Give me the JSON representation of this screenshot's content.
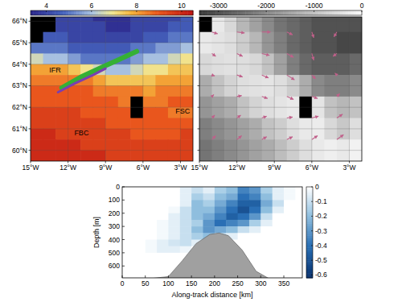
{
  "chart_data": [
    {
      "type": "map",
      "xlim": [
        -15,
        -2
      ],
      "ylim": [
        59.5,
        66.2
      ],
      "xticks": [
        {
          "value": -15,
          "label": "15°W"
        },
        {
          "value": -12,
          "label": "12°W"
        },
        {
          "value": -9,
          "label": "9°W"
        },
        {
          "value": -6,
          "label": "6°W"
        },
        {
          "value": -3,
          "label": "3°W"
        }
      ],
      "yticks": [
        {
          "value": 60,
          "label": "60°N"
        },
        {
          "value": 61,
          "label": "61°N"
        },
        {
          "value": 62,
          "label": "62°N"
        },
        {
          "value": 63,
          "label": "63°N"
        },
        {
          "value": 64,
          "label": "64°N"
        },
        {
          "value": 65,
          "label": "65°N"
        },
        {
          "value": 66,
          "label": "66°N"
        }
      ],
      "grid": true,
      "cells": {
        "x_edges": [
          -15,
          -14,
          -13,
          -12,
          -11,
          -10,
          -9,
          -8,
          -7,
          -6,
          -5,
          -4,
          -3,
          -2
        ],
        "y_edges": [
          66.5,
          66,
          65.5,
          65,
          64.5,
          64,
          63.5,
          63,
          62.5,
          62,
          61.5,
          61,
          60.5,
          60,
          59.5
        ],
        "values": [
          [
            null,
            null,
            4,
            4,
            4,
            3.5,
            3.5,
            3.5,
            4,
            4,
            4,
            4,
            4.5
          ],
          [
            null,
            null,
            4,
            4,
            4,
            4,
            3.5,
            3.5,
            4,
            4,
            4,
            4.5,
            4.5
          ],
          [
            null,
            4.5,
            4.5,
            4,
            4,
            4,
            4,
            4,
            4,
            4.5,
            4.5,
            5,
            5
          ],
          [
            5,
            5,
            5,
            4.5,
            4.5,
            4.5,
            4.5,
            4.5,
            5,
            5,
            5.5,
            5.5,
            6
          ],
          [
            6.5,
            6,
            6,
            5.5,
            5,
            5,
            5,
            5,
            5.5,
            6,
            6,
            6.5,
            7
          ],
          [
            8,
            8,
            8,
            7.5,
            7,
            6.5,
            6,
            6,
            6.5,
            7,
            7,
            7.5,
            7.5
          ],
          [
            8.5,
            8.5,
            8.5,
            8.5,
            8.5,
            8,
            7.5,
            7.5,
            7.5,
            7.5,
            8,
            8,
            8
          ],
          [
            9,
            9,
            9,
            9,
            9,
            8.5,
            8.5,
            8.5,
            8.5,
            8,
            8.5,
            8.5,
            8.5
          ],
          [
            9,
            9,
            9,
            9,
            9,
            9,
            9,
            8.5,
            null,
            8.5,
            8.5,
            9,
            9
          ],
          [
            9.5,
            9.5,
            9.5,
            9.5,
            9,
            9,
            9,
            9,
            null,
            9,
            9,
            8.5,
            8.5
          ],
          [
            9.5,
            9.5,
            9.5,
            9.5,
            9.5,
            9.5,
            9,
            9,
            9,
            9,
            9,
            9,
            9
          ],
          [
            10,
            10,
            9.5,
            9.5,
            9.5,
            9.5,
            9.5,
            9.5,
            9,
            9,
            9,
            9,
            9.5
          ],
          [
            10,
            10,
            10,
            10,
            9.5,
            9.5,
            9.5,
            9.5,
            9.5,
            9.5,
            9.5,
            9.5,
            9.5
          ],
          [
            10,
            10,
            10,
            10,
            10,
            10,
            9.5,
            9.5,
            9.5,
            9.5,
            9.5,
            9.5,
            9.5
          ]
        ]
      },
      "colorbar": {
        "range": [
          3.3,
          10.5
        ],
        "ticks": [
          4,
          6,
          8,
          10
        ]
      },
      "tracks": [
        {
          "color": "#35b035",
          "x": [
            -12.5,
            -11,
            -9.5,
            -8,
            -6.5
          ],
          "y": [
            62.9,
            63.4,
            63.8,
            64.2,
            64.6
          ]
        },
        {
          "color": "#7a3fb0",
          "x": [
            -12.8,
            -11.5,
            -10,
            -9
          ],
          "y": [
            62.7,
            63.1,
            63.5,
            63.8
          ]
        }
      ],
      "annotations": [
        {
          "text": "IFR",
          "x": -13.5,
          "y": 63.6
        },
        {
          "text": "FBC",
          "x": -11.5,
          "y": 60.7
        },
        {
          "text": "FSC",
          "x": -3.4,
          "y": 61.7
        }
      ]
    },
    {
      "type": "map",
      "xlim": [
        -15,
        -2
      ],
      "ylim": [
        59.5,
        66.2
      ],
      "xticks": [
        {
          "value": -15,
          "label": "15°W"
        },
        {
          "value": -12,
          "label": "12°W"
        },
        {
          "value": -9,
          "label": "9°W"
        },
        {
          "value": -6,
          "label": "6°W"
        },
        {
          "value": -3,
          "label": "3°W"
        }
      ],
      "yticks": [
        60,
        61,
        62,
        63,
        64,
        65,
        66
      ],
      "tick_labels": "x",
      "grid": true,
      "cells": {
        "x_edges": [
          -15,
          -14,
          -13,
          -12,
          -11,
          -10,
          -9,
          -8,
          -7,
          -6,
          -5,
          -4,
          -3,
          -2
        ],
        "y_edges": [
          66.5,
          65.5,
          64.5,
          63.5,
          62.5,
          61.5,
          60.5,
          59.5
        ],
        "values": [
          [
            null,
            -300,
            -600,
            -1200,
            -1600,
            -2000,
            -2400,
            -2600,
            -2800,
            -3000,
            -3000,
            -3000,
            -3000
          ],
          [
            -300,
            -400,
            -500,
            -800,
            -1200,
            -1800,
            -2200,
            -2600,
            -2800,
            -3000,
            -3000,
            -3200,
            -3200
          ],
          [
            -600,
            -500,
            -450,
            -500,
            -600,
            -1000,
            -1600,
            -2200,
            -2600,
            -2800,
            -2800,
            -2800,
            -2600
          ],
          [
            -1400,
            -1000,
            -700,
            -500,
            -450,
            -400,
            -500,
            -800,
            -1400,
            -2000,
            -2200,
            -2200,
            -2000
          ],
          [
            -1800,
            -1600,
            -1400,
            -1000,
            -700,
            -500,
            -400,
            -300,
            null,
            -400,
            -1000,
            -1200,
            -1000
          ],
          [
            -2200,
            -2000,
            -1800,
            -1600,
            -1400,
            -1000,
            -800,
            -500,
            -300,
            -250,
            -600,
            -900,
            -500
          ],
          [
            -2400,
            -2200,
            -2000,
            -1800,
            -1600,
            -1400,
            -1100,
            -800,
            -500,
            -300,
            -200,
            -300,
            -150
          ]
        ]
      },
      "colorbar": {
        "range": [
          -3400,
          0
        ],
        "ticks": [
          -3000,
          -2000,
          -1000,
          0
        ]
      },
      "vectors": {
        "color": "#c0608a",
        "lons": [
          -14,
          -12,
          -10,
          -8,
          -6,
          -4
        ],
        "lats": [
          65.5,
          64.5,
          63.5,
          62.5,
          61.5,
          60.5
        ],
        "u": [
          [
            0.6,
            0.8,
            0.9,
            0.6,
            0.2,
            -0.3
          ],
          [
            0.4,
            0.6,
            0.8,
            0.7,
            0.2,
            -0.4
          ],
          [
            0.3,
            0.6,
            0.7,
            0.8,
            0.4,
            -0.2
          ],
          [
            0.2,
            0.5,
            0.6,
            0.7,
            0.6,
            0.3
          ],
          [
            0.3,
            0.4,
            0.5,
            0.6,
            0.7,
            0.6
          ],
          [
            0.4,
            0.5,
            0.5,
            0.6,
            0.6,
            0.7
          ]
        ],
        "v": [
          [
            -0.2,
            -0.1,
            0,
            -0.3,
            -0.6,
            -0.5
          ],
          [
            -0.3,
            -0.3,
            -0.2,
            -0.4,
            -0.7,
            -0.3
          ],
          [
            -0.1,
            -0.2,
            -0.3,
            -0.5,
            -0.4,
            0.2
          ],
          [
            0.2,
            0.1,
            -0.2,
            -0.3,
            -0.2,
            0.3
          ],
          [
            0.3,
            0.3,
            0.2,
            0.1,
            0.2,
            0.4
          ],
          [
            0.4,
            0.4,
            0.3,
            0.3,
            0.4,
            0.5
          ]
        ]
      }
    },
    {
      "type": "section",
      "x_label": "Along-track distance [km]",
      "y_label": "Depth [m]",
      "xlim": [
        0,
        390
      ],
      "ylim": [
        690,
        0
      ],
      "xticks": [
        0,
        50,
        100,
        150,
        200,
        250,
        300,
        350
      ],
      "yticks": [
        0,
        100,
        200,
        300,
        400,
        500,
        600
      ],
      "cells": {
        "x_edges": [
          0,
          25,
          50,
          75,
          100,
          125,
          150,
          175,
          200,
          225,
          250,
          275,
          300,
          325,
          350,
          375,
          400
        ],
        "depth_edges": [
          0,
          50,
          100,
          150,
          200,
          250,
          300,
          350,
          400,
          450,
          500,
          550,
          600,
          650,
          700
        ],
        "values": [
          [
            0,
            0,
            0,
            0,
            0,
            -0.05,
            -0.1,
            -0.05,
            -0.15,
            -0.2,
            -0.35,
            -0.3,
            -0.15,
            -0.05,
            -0.02,
            0
          ],
          [
            0,
            0,
            0,
            0,
            0,
            -0.05,
            -0.15,
            -0.1,
            -0.2,
            -0.25,
            -0.4,
            -0.35,
            -0.2,
            -0.05,
            -0.02,
            0
          ],
          [
            0,
            0,
            0,
            0,
            0,
            -0.05,
            -0.2,
            -0.15,
            -0.25,
            -0.35,
            -0.45,
            -0.45,
            -0.25,
            -0.1,
            0,
            0
          ],
          [
            0,
            0,
            0,
            0,
            -0.02,
            -0.1,
            -0.2,
            -0.2,
            -0.3,
            -0.4,
            -0.5,
            -0.4,
            -0.2,
            -0.05,
            0,
            0
          ],
          [
            0,
            0,
            0,
            0,
            -0.05,
            -0.1,
            -0.2,
            -0.25,
            -0.35,
            -0.45,
            -0.4,
            -0.3,
            -0.1,
            0,
            0,
            0
          ],
          [
            0,
            0,
            0,
            -0.02,
            -0.05,
            -0.1,
            -0.15,
            -0.3,
            -0.4,
            -0.35,
            -0.3,
            -0.15,
            -0.05,
            0,
            0,
            0
          ],
          [
            0,
            0,
            0,
            -0.02,
            -0.05,
            -0.1,
            -0.2,
            -0.3,
            -0.25,
            -0.2,
            -0.1,
            -0.05,
            0,
            0,
            0,
            0
          ],
          [
            0,
            0,
            0,
            -0.02,
            -0.05,
            -0.1,
            -0.15,
            -0.2,
            -0.1,
            -0.05,
            0,
            0,
            0,
            0,
            0,
            0
          ],
          [
            0,
            0,
            -0.02,
            -0.05,
            -0.08,
            -0.1,
            -0.05,
            0,
            0,
            0,
            0,
            0,
            0,
            0,
            0,
            0
          ],
          [
            0,
            0,
            -0.02,
            -0.05,
            -0.05,
            -0.03,
            0,
            0,
            0,
            0,
            0,
            0,
            0,
            0,
            0,
            0
          ],
          [
            0,
            0,
            0,
            0,
            0,
            0,
            0,
            0,
            0,
            0,
            0,
            0,
            0,
            0,
            0,
            0
          ],
          [
            0,
            0,
            0,
            0,
            0,
            0,
            0,
            0,
            0,
            0,
            0,
            0,
            0,
            0,
            0,
            0
          ],
          [
            0,
            0,
            0,
            0,
            0,
            0,
            0,
            0,
            0,
            0,
            0,
            0,
            0,
            0,
            0,
            0
          ],
          [
            0,
            0,
            0,
            0,
            0,
            0,
            0,
            0,
            0,
            0,
            0,
            0,
            0,
            0,
            0,
            0
          ]
        ]
      },
      "bathymetry": {
        "x": [
          0,
          50,
          100,
          130,
          160,
          190,
          210,
          230,
          260,
          290,
          320,
          390
        ],
        "depth": [
          700,
          700,
          680,
          560,
          430,
          360,
          350,
          370,
          480,
          640,
          700,
          700
        ]
      },
      "colorbar": {
        "range": [
          -0.62,
          0
        ],
        "ticks": [
          0,
          -0.1,
          -0.2,
          -0.3,
          -0.4,
          -0.5,
          -0.6
        ]
      }
    }
  ]
}
